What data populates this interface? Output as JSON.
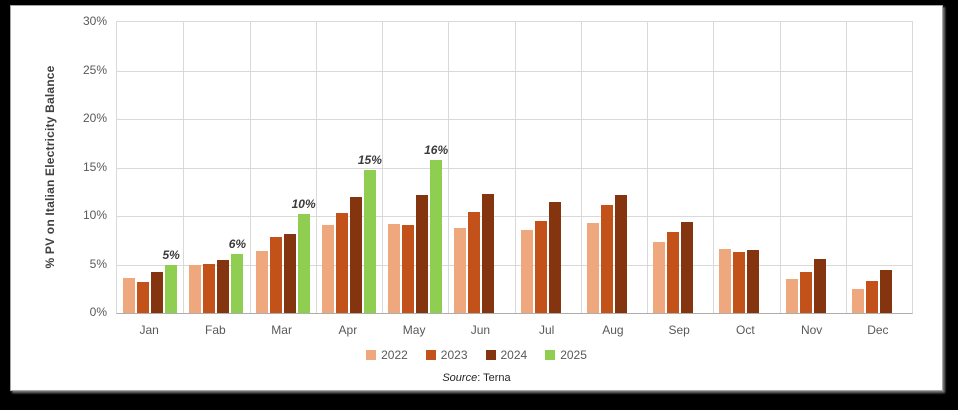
{
  "chart_data": {
    "type": "bar",
    "title": "",
    "ylabel": "% PV on Italian Electricity Balance",
    "xlabel": "",
    "ylim": [
      0,
      30
    ],
    "ytick_step": 5,
    "ytick_suffix": "%",
    "grid": true,
    "legend_position": "bottom",
    "categories": [
      "Jan",
      "Fab",
      "Mar",
      "Apr",
      "May",
      "Jun",
      "Jul",
      "Aug",
      "Sep",
      "Oct",
      "Nov",
      "Dec"
    ],
    "series": [
      {
        "name": "2022",
        "color": "#EFA77E",
        "values": [
          3.6,
          5.0,
          6.4,
          9.1,
          9.2,
          8.8,
          8.6,
          9.3,
          7.3,
          6.6,
          3.5,
          2.5
        ]
      },
      {
        "name": "2023",
        "color": "#C2511A",
        "values": [
          3.2,
          5.1,
          7.8,
          10.3,
          9.1,
          10.4,
          9.5,
          11.1,
          8.4,
          6.3,
          4.2,
          3.3
        ]
      },
      {
        "name": "2024",
        "color": "#843510",
        "values": [
          4.2,
          5.5,
          8.1,
          12.0,
          12.2,
          12.3,
          11.4,
          12.2,
          9.4,
          6.5,
          5.6,
          4.4
        ]
      },
      {
        "name": "2025",
        "color": "#90CE51",
        "values": [
          4.9,
          6.1,
          10.2,
          14.7,
          15.8,
          null,
          null,
          null,
          null,
          null,
          null,
          null
        ]
      }
    ],
    "annotations": [
      {
        "category": "Jan",
        "series": "2025",
        "text": "5%"
      },
      {
        "category": "Fab",
        "series": "2025",
        "text": "6%"
      },
      {
        "category": "Mar",
        "series": "2025",
        "text": "10%"
      },
      {
        "category": "Apr",
        "series": "2025",
        "text": "15%"
      },
      {
        "category": "May",
        "series": "2025",
        "text": "16%"
      }
    ],
    "colors": {
      "grid": "#D9D9D9",
      "axis_line": "#ADADAD",
      "axis_text": "#595959",
      "annotation_text": "#3B3B3B",
      "ylabel_text": "#404040",
      "plot_background": "#FFFFFF",
      "frame_background": "#000000"
    }
  },
  "source": {
    "word": "Source",
    "rest": ": Terna"
  }
}
